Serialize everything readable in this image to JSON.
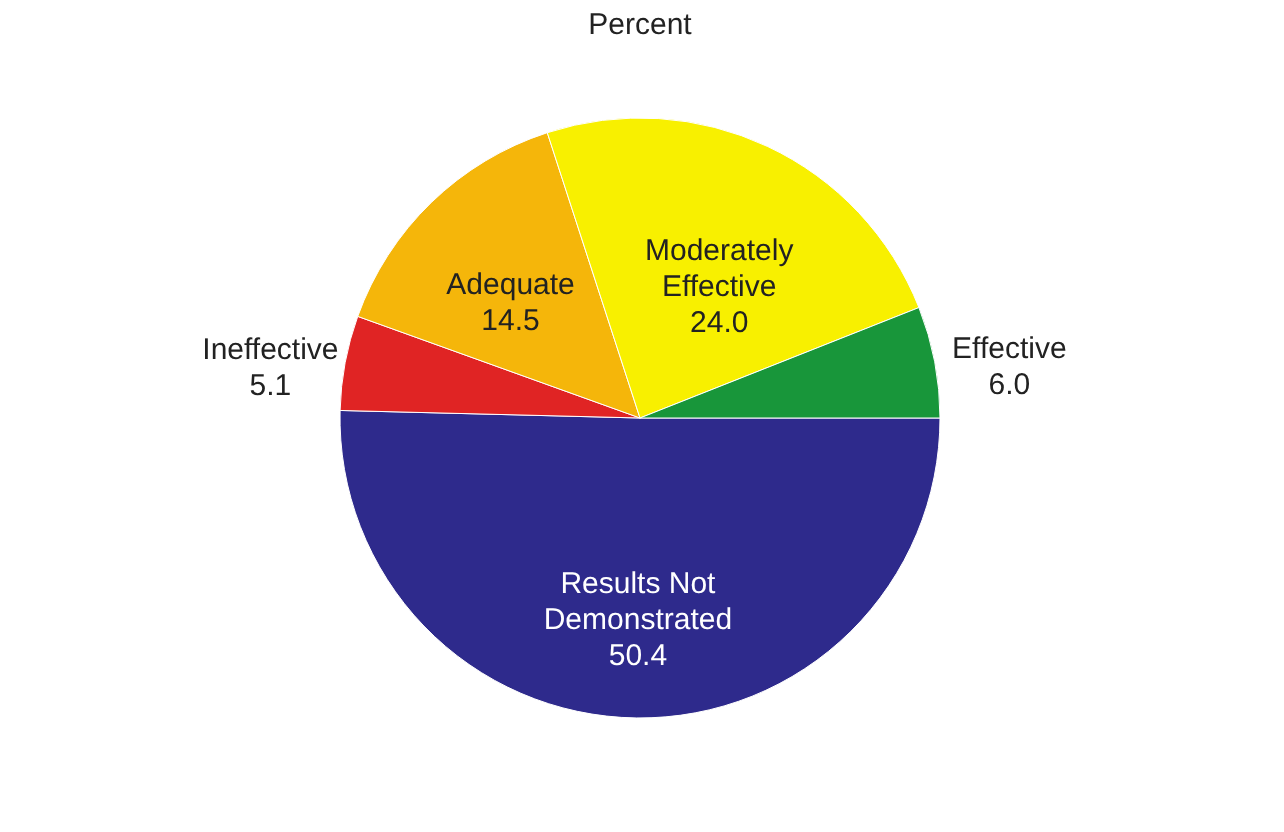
{
  "chart_data": {
    "type": "pie",
    "title": "Percent",
    "categories": [
      "Results Not Demonstrated",
      "Ineffective",
      "Adequate",
      "Moderately Effective",
      "Effective"
    ],
    "values": [
      50.4,
      5.1,
      14.5,
      24.0,
      6.0
    ],
    "value_labels": [
      "50.4",
      "5.1",
      "14.5",
      "24.0",
      "6.0"
    ],
    "colors": [
      "#2e2a8c",
      "#e02424",
      "#f5b60a",
      "#f8f000",
      "#18963a"
    ],
    "legend": false
  }
}
